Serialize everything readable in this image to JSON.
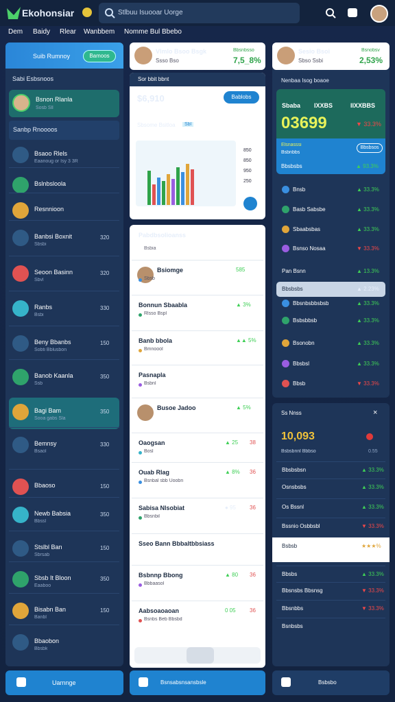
{
  "header": {
    "app_name": "Ekohonsiar",
    "search": "Stlbuu Isuooar Uorge",
    "nav": [
      "Dem",
      "Baidy",
      "Rlear",
      "Wanbbem",
      "Nomme Bul Bbebo"
    ]
  },
  "left": {
    "title": "Suib Rumnoy",
    "button": "Bamoos",
    "section_a": "Sabi Esbsnoos",
    "active": {
      "name": "Bsnon Rlanla",
      "sub": "Sosb Sll"
    },
    "section_b": "Sanbp Rnoooos",
    "items": [
      {
        "name": "Bsaoo Rlels",
        "sub": "Eaanoug or Isy 3 3R"
      },
      {
        "name": "Bslnbsloola"
      },
      {
        "name": "Resnnioon"
      },
      {
        "name": "Banbsi Boxnit",
        "sub": "Sbsbi",
        "meta": "320"
      },
      {
        "name": "Seoon Basinn",
        "sub": "Sbvl",
        "meta": "320"
      },
      {
        "name": "Ranbs",
        "sub": "Bsbi",
        "meta": "330"
      },
      {
        "name": "Beny Bbanbs",
        "sub": "Sobti Bblusbon",
        "meta": "150"
      },
      {
        "name": "Banob Kaanla",
        "sub": "Ssb",
        "meta": "350"
      },
      {
        "name": "Bagi Bam",
        "sub": "Sooa gabs Sla",
        "meta": "350"
      },
      {
        "name": "Bemnsy",
        "sub": "Bsaol",
        "meta": "330"
      },
      {
        "name": "Bbaoso",
        "meta": "150"
      },
      {
        "name": "Newb Babsia",
        "sub": "Bbssl",
        "meta": "350"
      },
      {
        "name": "Stslbl Ban",
        "sub": "Sbrsab",
        "meta": "150"
      },
      {
        "name": "Sbsb It Bloon",
        "sub": "Eaaboo",
        "meta": "350"
      },
      {
        "name": "Bisabn Ban",
        "sub": "Banbl",
        "meta": "150"
      },
      {
        "name": "Bbaobon",
        "sub": "Bbsbk"
      }
    ],
    "footer": "Uarnnge"
  },
  "middle": {
    "profile": {
      "name": "Vlmlo Bsoo Bsgk",
      "sub": "Ssso Bso",
      "badge": "Bbsnbsso",
      "change": "7,5_8%"
    },
    "chart_card": {
      "header": "Sor bbit bbnt",
      "amount": "$6,910",
      "button": "Bablobs",
      "label": "Sbsome Bsitloa",
      "tag": "Sbl",
      "axis": [
        "850",
        "850",
        "950",
        "250"
      ]
    },
    "list": {
      "title": "Pabdbsolioanss",
      "sub": "Bsbia",
      "items": [
        {
          "name": "Bsiomge",
          "sub": "Sbsb",
          "meta": "585"
        },
        {
          "name": "Bonnun Sbaabla",
          "sub": "Rlsso Bspl",
          "meta": "▲ 3%"
        },
        {
          "name": "Banb bbola",
          "sub": "Bmnoool",
          "meta": "▲▲ 5%"
        },
        {
          "name": "Pasnapla",
          "sub": "Bsbnl"
        },
        {
          "name": "Busoe Jadoo",
          "meta": "▲ 5%"
        },
        {
          "name": "Oaogsan",
          "sub": "Bosl",
          "meta": "▲ 25",
          "meta2": "38"
        },
        {
          "name": "Ouab Rlag",
          "sub": "Bsnbal sbb Uoobn",
          "meta": "▲ 8%",
          "meta2": "36"
        },
        {
          "name": "Sabisa Nlsobiat",
          "sub": "Bbsnbil",
          "meta": "● 95",
          "meta2": "36"
        },
        {
          "name": "Sseo Bann Bbbaltbbsiass"
        },
        {
          "name": "Bsbnnp Bbong",
          "sub": "Bbbaasol",
          "meta": "▲ 80",
          "meta2": "36"
        },
        {
          "name": "Aabsoaoaoan",
          "sub": "Bsnbs Beb Bbsbd",
          "meta": "0 05",
          "meta2": "36"
        }
      ]
    },
    "footer": "Bsnsabsnsansbsle"
  },
  "right": {
    "profile": {
      "name": "Sesio Bsoi",
      "sub": "Sbso Ssbi",
      "badge": "Bsnobsv",
      "change": "2,53%"
    },
    "stock": {
      "header": "Nenbaa Isog boaoe",
      "labels": [
        "Sbaba",
        "IXXBS",
        "IIXXBBS"
      ],
      "big": "03699",
      "change": "▼ 33.3%",
      "sub1": "Elsnasssi",
      "sub2": "Bsbnbbs",
      "button": "Bbsbsos",
      "row": "Bbsbsbs",
      "row_change": "▲ 93.3%"
    },
    "items": [
      {
        "name": "Bnsb",
        "meta": "▲ 33.3%"
      },
      {
        "name": "Basb Sabsbe",
        "meta": "▲ 33.3%"
      },
      {
        "name": "Sbaabsbas",
        "meta": "▲ 33.3%"
      },
      {
        "name": "Bsnso Nosaa",
        "meta": "▼ 33.3%"
      },
      {
        "name": "Pan Bsnn",
        "meta": "▲ 13.3%"
      },
      {
        "name": "Bbsbsbs",
        "meta": "▲ 2.23%"
      },
      {
        "name": "Bbsnbsbbsbsb",
        "meta": "▲ 33.3%"
      },
      {
        "name": "Bsbsbbsb",
        "meta": "▲ 33.3%"
      },
      {
        "name": "Bsonobn",
        "meta": "▲ 33.3%"
      },
      {
        "name": "Bbsbsl",
        "meta": "▲ 33.3%"
      },
      {
        "name": "Bbsb",
        "meta": "▼ 33.3%"
      }
    ],
    "panel": {
      "title": "Ss Nnss",
      "big": "10,093",
      "sub": "Bsbsbnnl Bbbso",
      "sub_value": "0.55",
      "rows": [
        {
          "name": "Bbsbsbsn",
          "meta": "▲ 33.3%"
        },
        {
          "name": "Osnsbsbs",
          "meta": "▲ 33.3%"
        },
        {
          "name": "Os Bssnl",
          "meta": "▲ 33.3%"
        },
        {
          "name": "Bssnio Osbbsbl",
          "meta": "▼ 33.3%"
        },
        {
          "name": "Bsbsb",
          "meta": "★★★%"
        },
        {
          "name": "Bbsbs",
          "meta": "▲ 33.3%"
        },
        {
          "name": "Bbsnsbs Bbsnsg",
          "meta": "▼ 33.3%"
        },
        {
          "name": "Bbsnbbs",
          "meta": "▼ 33.3%"
        },
        {
          "name": "Bsnbsbs"
        }
      ]
    },
    "footer": "Bsbsbo"
  }
}
